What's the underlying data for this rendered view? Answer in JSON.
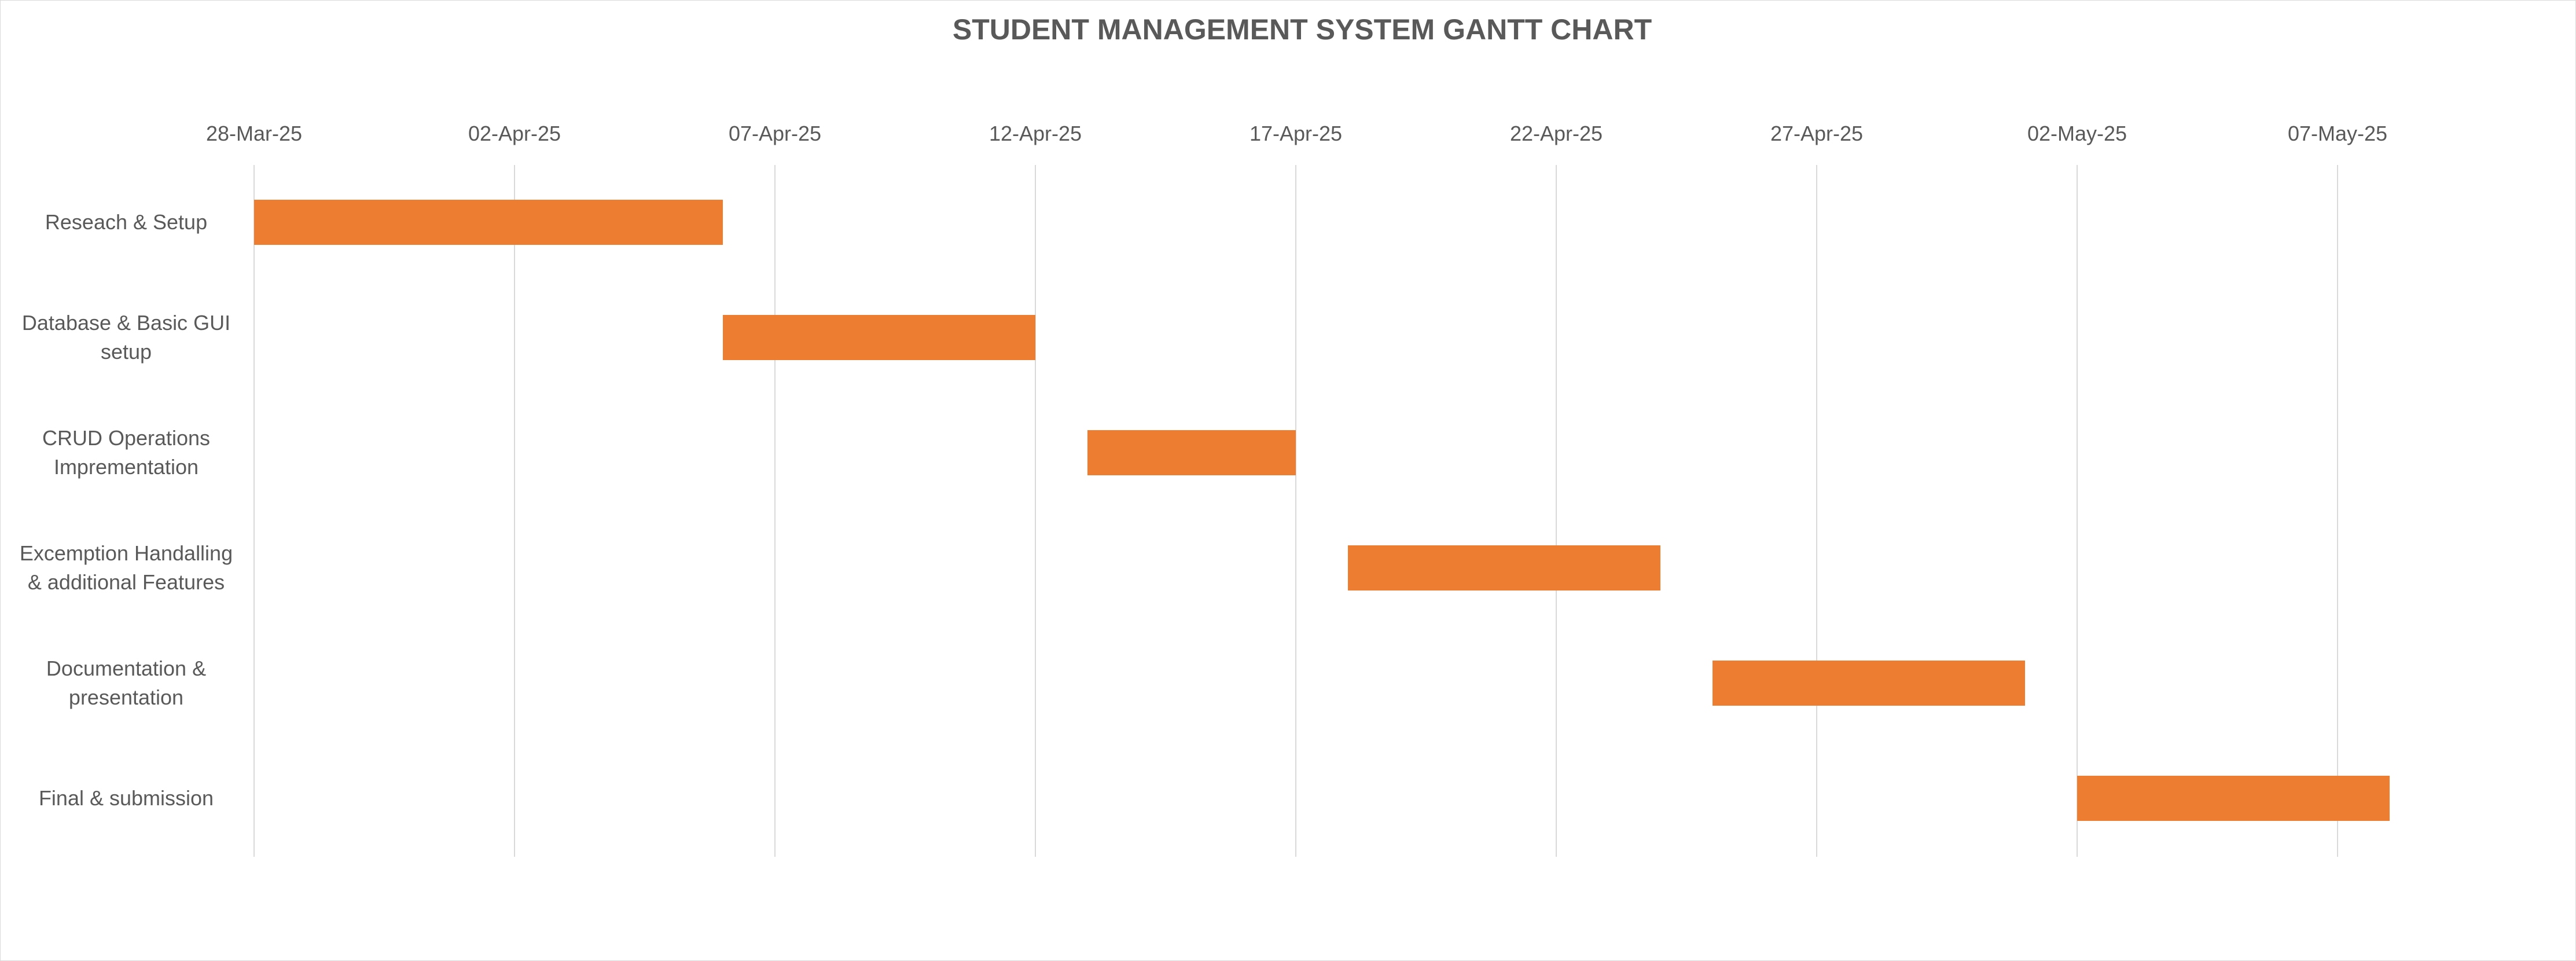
{
  "chart_data": {
    "type": "bar",
    "orientation": "horizontal",
    "subtype": "gantt",
    "title": "STUDENT MANAGEMENT  SYSTEM GANTT CHART",
    "xlabel": "",
    "ylabel": "",
    "x_axis_position": "top",
    "xlim": [
      "2025-03-28",
      "2025-05-12"
    ],
    "x_ticks": [
      {
        "date": "2025-03-28",
        "label": "28-Mar-25"
      },
      {
        "date": "2025-04-02",
        "label": "02-Apr-25"
      },
      {
        "date": "2025-04-07",
        "label": "07-Apr-25"
      },
      {
        "date": "2025-04-12",
        "label": "12-Apr-25"
      },
      {
        "date": "2025-04-17",
        "label": "17-Apr-25"
      },
      {
        "date": "2025-04-22",
        "label": "22-Apr-25"
      },
      {
        "date": "2025-04-27",
        "label": "27-Apr-25"
      },
      {
        "date": "2025-05-02",
        "label": "02-May-25"
      },
      {
        "date": "2025-05-07",
        "label": "07-May-25"
      }
    ],
    "grid": "vertical",
    "legend": "none",
    "bar_color": "#ED7D31",
    "tasks": [
      {
        "label_lines": [
          "Reseach & Setup"
        ],
        "start": "2025-03-28",
        "end": "2025-04-06"
      },
      {
        "label_lines": [
          "Database & Basic GUI",
          "setup"
        ],
        "start": "2025-04-06",
        "end": "2025-04-12"
      },
      {
        "label_lines": [
          "CRUD Operations",
          "Imprementation"
        ],
        "start": "2025-04-13",
        "end": "2025-04-17"
      },
      {
        "label_lines": [
          "Excemption Handalling",
          "& additional Features"
        ],
        "start": "2025-04-18",
        "end": "2025-04-24"
      },
      {
        "label_lines": [
          "Documentation &",
          "presentation"
        ],
        "start": "2025-04-25",
        "end": "2025-05-01"
      },
      {
        "label_lines": [
          "Final & submission"
        ],
        "start": "2025-05-02",
        "end": "2025-05-08"
      }
    ]
  }
}
